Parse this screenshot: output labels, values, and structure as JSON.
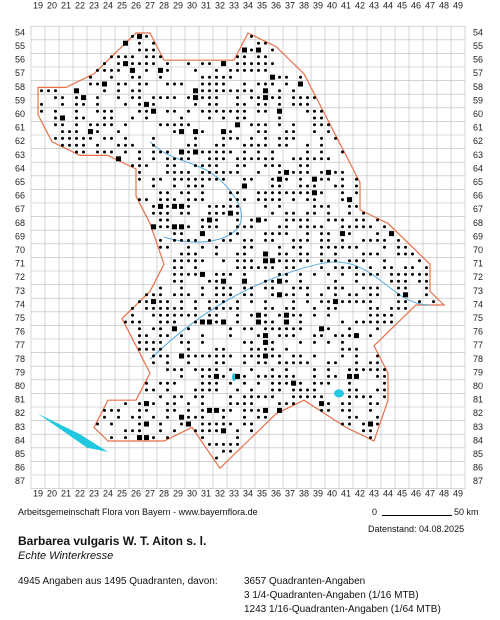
{
  "grid": {
    "columns": [
      19,
      20,
      21,
      22,
      23,
      24,
      25,
      26,
      27,
      28,
      29,
      30,
      31,
      32,
      33,
      34,
      35,
      36,
      37,
      38,
      39,
      40,
      41,
      42,
      43,
      44,
      45,
      46,
      47,
      48,
      49
    ],
    "rows": [
      54,
      55,
      56,
      57,
      58,
      59,
      60,
      61,
      62,
      63,
      64,
      65,
      66,
      67,
      68,
      69,
      70,
      71,
      72,
      73,
      74,
      75,
      76,
      77,
      78,
      79,
      80,
      81,
      82,
      83,
      84,
      85,
      86,
      87
    ]
  },
  "footer": {
    "credit": "Arbeitsgemeinschaft Flora von Bayern - www.bayernflora.de",
    "scale_start": "0",
    "scale_end": "50 km",
    "date": "Datenstand: 04.08.2025"
  },
  "species": {
    "name": "Barbarea vulgaris W. T. Aiton s. l.",
    "common_name": "Echte Winterkresse"
  },
  "stats": {
    "total": "4945 Angaben aus 1495 Quadranten, davon:",
    "quadrant": "3657 Quadranten-Angaben",
    "quarter": "3 1/4-Quadranten-Angaben (1/16 MTB)",
    "sixteenth": "1243 1/16-Quadranten-Angaben (1/64 MTB)"
  }
}
